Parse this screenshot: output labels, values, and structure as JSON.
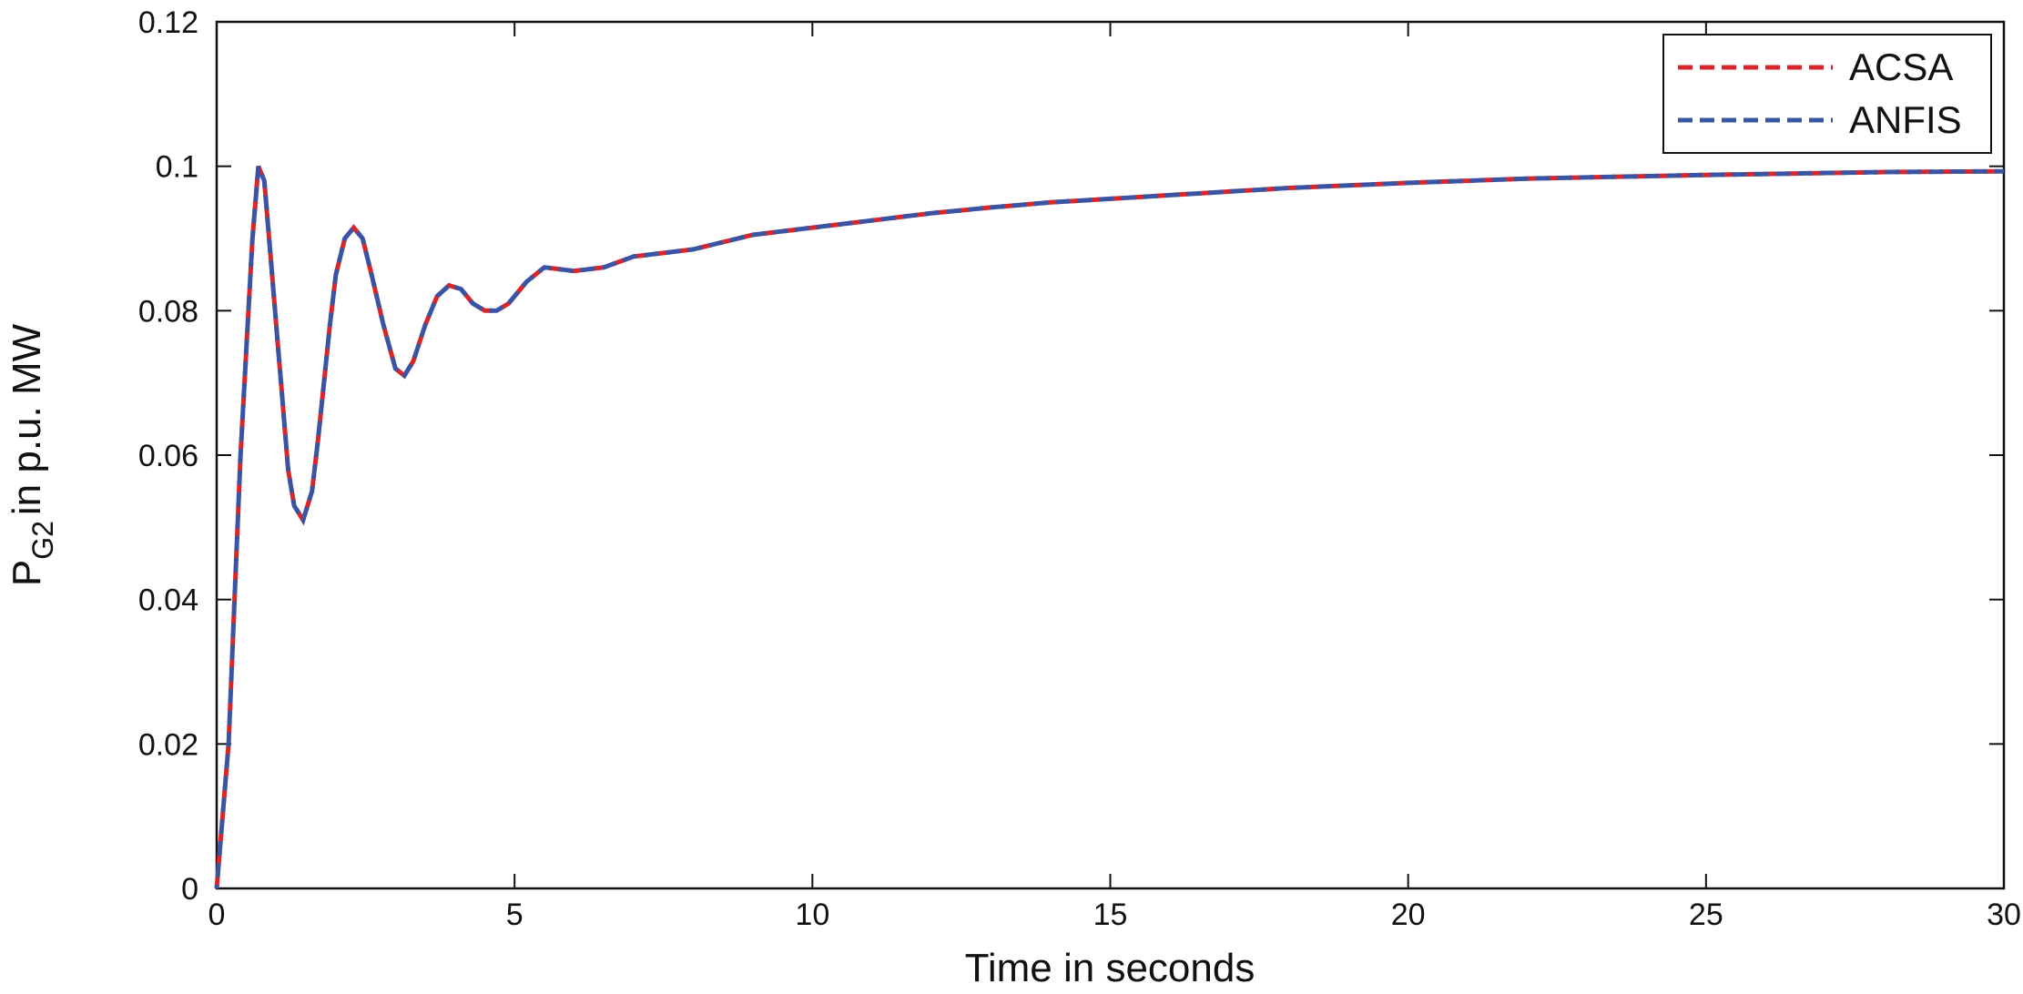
{
  "chart_data": {
    "type": "line",
    "xlabel": "Time in seconds",
    "ylabel": {
      "main": "P",
      "sub": "G2",
      "rest": "in p.u. MW"
    },
    "x": [
      0,
      0.1,
      0.2,
      0.3,
      0.4,
      0.5,
      0.6,
      0.7,
      0.8,
      0.9,
      1.0,
      1.1,
      1.2,
      1.3,
      1.45,
      1.6,
      1.7,
      1.8,
      1.9,
      2.0,
      2.15,
      2.3,
      2.45,
      2.6,
      2.8,
      3.0,
      3.15,
      3.3,
      3.5,
      3.7,
      3.9,
      4.1,
      4.3,
      4.5,
      4.7,
      4.9,
      5.2,
      5.5,
      6.0,
      6.5,
      7,
      7.5,
      8,
      9,
      10,
      11,
      12,
      13,
      14,
      15,
      16,
      17,
      18,
      20,
      22,
      25,
      28,
      30
    ],
    "series": [
      {
        "name": "ACSA",
        "color": "#d9262b",
        "values": [
          0,
          0.01,
          0.02,
          0.04,
          0.06,
          0.075,
          0.09,
          0.1,
          0.098,
          0.088,
          0.078,
          0.068,
          0.058,
          0.053,
          0.051,
          0.055,
          0.062,
          0.07,
          0.078,
          0.085,
          0.09,
          0.0915,
          0.09,
          0.085,
          0.078,
          0.072,
          0.071,
          0.073,
          0.078,
          0.082,
          0.0835,
          0.083,
          0.081,
          0.08,
          0.08,
          0.081,
          0.084,
          0.086,
          0.0855,
          0.086,
          0.0875,
          0.088,
          0.0885,
          0.0905,
          0.0915,
          0.0925,
          0.0935,
          0.0943,
          0.095,
          0.0955,
          0.096,
          0.0965,
          0.097,
          0.0977,
          0.0983,
          0.0988,
          0.0992,
          0.0993
        ]
      },
      {
        "name": "ANFIS",
        "color": "#3a54a4",
        "values": [
          0,
          0.01,
          0.02,
          0.04,
          0.06,
          0.075,
          0.09,
          0.1,
          0.098,
          0.088,
          0.078,
          0.068,
          0.058,
          0.053,
          0.051,
          0.055,
          0.062,
          0.07,
          0.078,
          0.085,
          0.09,
          0.0915,
          0.09,
          0.085,
          0.078,
          0.072,
          0.071,
          0.073,
          0.078,
          0.082,
          0.0835,
          0.083,
          0.081,
          0.08,
          0.08,
          0.081,
          0.084,
          0.086,
          0.0855,
          0.086,
          0.0875,
          0.088,
          0.0885,
          0.0905,
          0.0915,
          0.0925,
          0.0935,
          0.0943,
          0.095,
          0.0955,
          0.096,
          0.0965,
          0.097,
          0.0977,
          0.0983,
          0.0988,
          0.0992,
          0.0993
        ]
      }
    ],
    "xlim": [
      0,
      30
    ],
    "xticks": [
      0,
      5,
      10,
      15,
      20,
      25,
      30
    ],
    "ylim": [
      0,
      0.12
    ],
    "yticks": [
      0,
      0.02,
      0.04,
      0.06,
      0.08,
      0.1,
      0.12
    ],
    "legend": "upper right"
  }
}
